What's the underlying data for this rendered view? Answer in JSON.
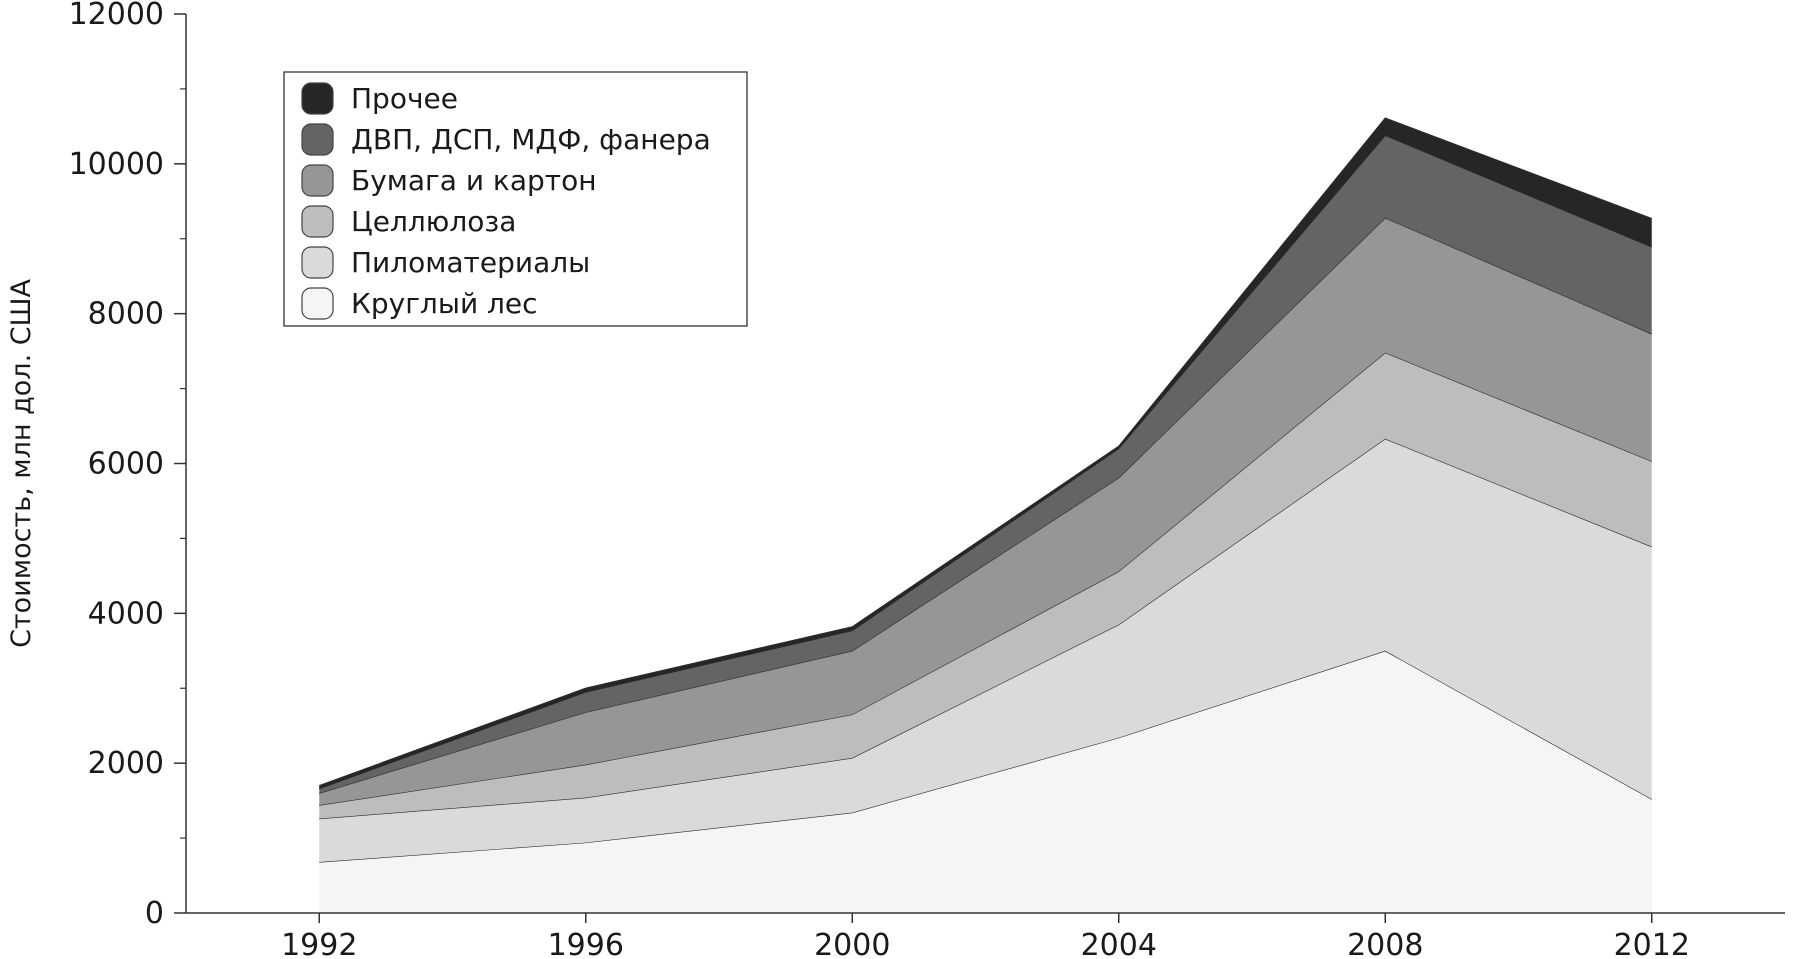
{
  "chart_data": {
    "type": "area",
    "stacked": true,
    "title": "",
    "xlabel": "",
    "ylabel": "Стоимость, млн дол. США",
    "x": [
      1992,
      1996,
      2000,
      2004,
      2008,
      2012
    ],
    "x_ticks": [
      "1992",
      "1996",
      "2000",
      "2004",
      "2008",
      "2012"
    ],
    "xlim": [
      1990,
      2014
    ],
    "ylim": [
      0,
      12000
    ],
    "y_ticks": [
      "0",
      "2000",
      "4000",
      "6000",
      "8000",
      "10000",
      "12000"
    ],
    "grid": false,
    "legend_position": "top-left",
    "series": [
      {
        "name": "Круглый лес",
        "color": "#f5f5f5",
        "values": [
          680,
          940,
          1340,
          2340,
          3500,
          1520
        ]
      },
      {
        "name": "Пиломатериалы",
        "color": "#dadada",
        "values": [
          580,
          600,
          730,
          1510,
          2830,
          3370
        ]
      },
      {
        "name": "Целлюлоза",
        "color": "#bdbdbd",
        "values": [
          180,
          440,
          580,
          710,
          1150,
          1140
        ]
      },
      {
        "name": "Бумага и картон",
        "color": "#969696",
        "values": [
          160,
          700,
          850,
          1250,
          1800,
          1700
        ]
      },
      {
        "name": "ДВП, ДСП, МДФ, фанера",
        "color": "#646464",
        "values": [
          60,
          270,
          270,
          390,
          1100,
          1160
        ]
      },
      {
        "name": "Прочее",
        "color": "#262626",
        "values": [
          40,
          50,
          50,
          30,
          230,
          380
        ]
      }
    ]
  }
}
